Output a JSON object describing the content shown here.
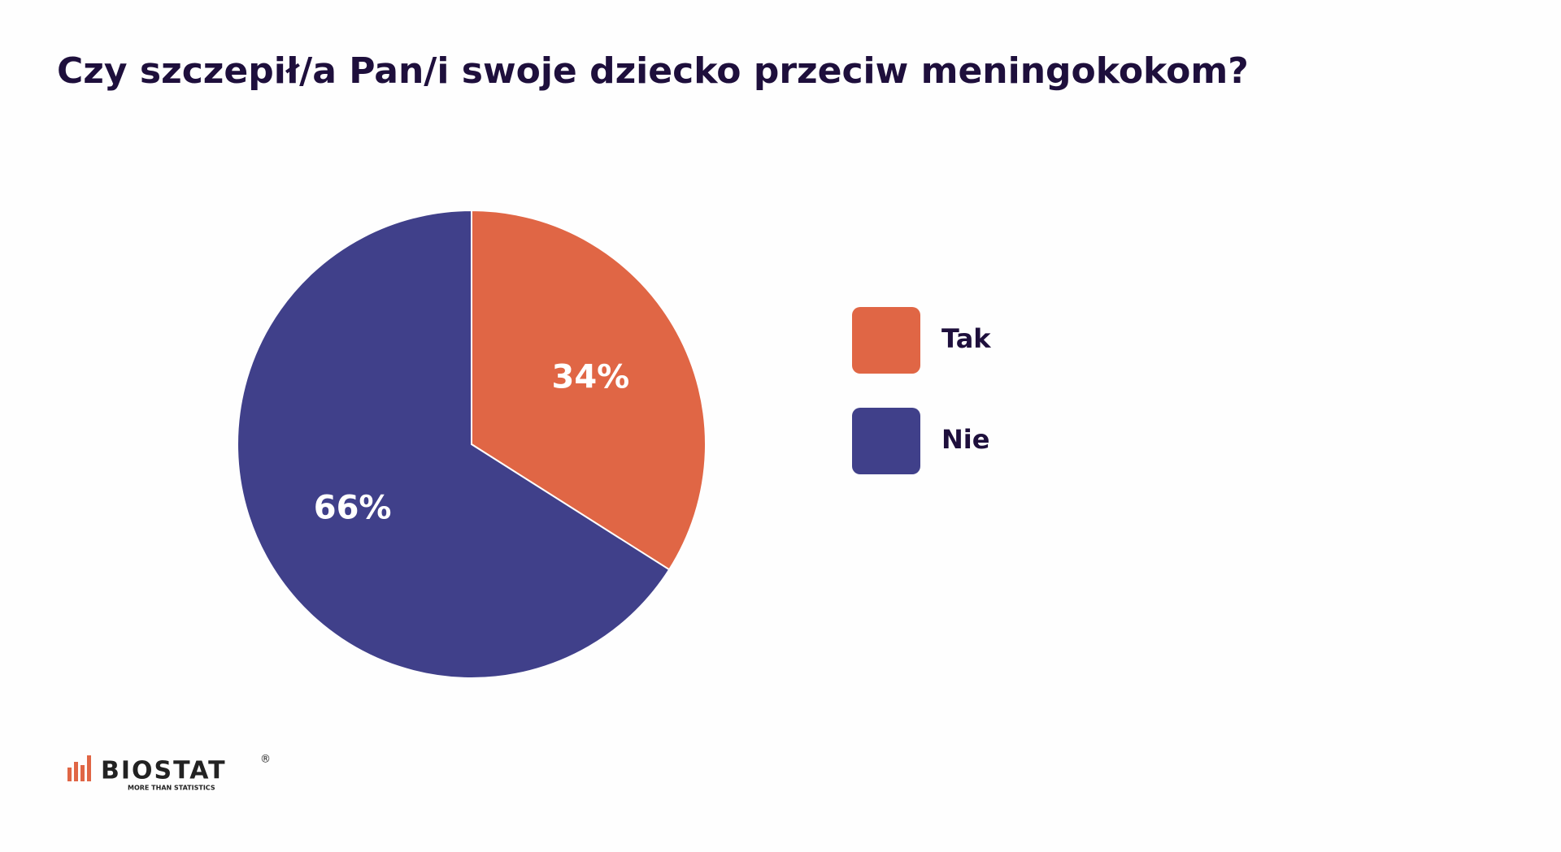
{
  "chart_data": {
    "type": "pie",
    "title": "Czy szczepił/a Pan/i swoje dziecko przeciw meningokokom?",
    "categories": [
      "Tak",
      "Nie"
    ],
    "values": [
      34,
      66
    ],
    "value_labels": [
      "34%",
      "66%"
    ],
    "colors": [
      "#e06645",
      "#40408a"
    ],
    "legend": "right"
  },
  "logo": {
    "name": "BIOSTAT",
    "tagline": "MORE THAN STATISTICS",
    "mark": "®"
  }
}
